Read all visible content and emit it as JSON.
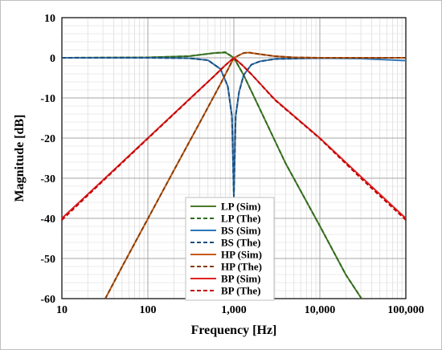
{
  "chart_data": {
    "type": "line",
    "xlabel": "Frequency [Hz]",
    "ylabel": "Magnitude [dB]",
    "xscale": "log",
    "xlim": [
      10,
      100000
    ],
    "ylim": [
      -60,
      10
    ],
    "x_ticks": [
      {
        "value": 10,
        "label": "10"
      },
      {
        "value": 100,
        "label": "100"
      },
      {
        "value": 1000,
        "label": "1,000"
      },
      {
        "value": 10000,
        "label": "10,000"
      },
      {
        "value": 100000,
        "label": "100,000"
      }
    ],
    "y_ticks": [
      {
        "value": 10,
        "label": "10"
      },
      {
        "value": 0,
        "label": "0"
      },
      {
        "value": -10,
        "label": "-10"
      },
      {
        "value": -20,
        "label": "-20"
      },
      {
        "value": -30,
        "label": "-30"
      },
      {
        "value": -40,
        "label": "-40"
      },
      {
        "value": -50,
        "label": "-50"
      },
      {
        "value": -60,
        "label": "-60"
      }
    ],
    "grid": true,
    "legend_position": "bottom-center",
    "series": [
      {
        "name": "LP (Sim)",
        "color": "#4c7a2c",
        "dash": "solid",
        "x": [
          10,
          100,
          300,
          600,
          800,
          1000,
          1300,
          2000,
          4000,
          10000,
          20000,
          33000
        ],
        "y": [
          0,
          0.1,
          0.4,
          1.2,
          1.3,
          0,
          -4.3,
          -12.7,
          -26.3,
          -41.9,
          -54,
          -61.1
        ]
      },
      {
        "name": "LP (The)",
        "color": "#2e6b1f",
        "dash": "dashed",
        "x": [
          10,
          100,
          300,
          600,
          800,
          1000,
          1300,
          2000,
          4000,
          10000,
          20000,
          33000
        ],
        "y": [
          0,
          0.1,
          0.4,
          1.2,
          1.4,
          0,
          -4.3,
          -12.7,
          -26.3,
          -41.9,
          -54,
          -61.1
        ]
      },
      {
        "name": "BS (Sim)",
        "color": "#2e75b6",
        "dash": "solid",
        "x": [
          10,
          100,
          300,
          500,
          700,
          850,
          950,
          1000,
          1050,
          1150,
          1300,
          1600,
          2000,
          3000,
          10000,
          30000,
          100000
        ],
        "y": [
          0,
          0,
          -0.1,
          -0.6,
          -2.8,
          -7.1,
          -14.5,
          -34.5,
          -14.5,
          -8.5,
          -4.3,
          -1.7,
          -0.9,
          -0.3,
          -0.1,
          -0.2,
          -0.7
        ]
      },
      {
        "name": "BS (The)",
        "color": "#1f4e79",
        "dash": "dashed",
        "x": [
          10,
          100,
          300,
          500,
          700,
          850,
          950,
          1000,
          1050,
          1150,
          1300,
          1600,
          2000,
          3000,
          10000,
          100000
        ],
        "y": [
          0,
          0,
          -0.1,
          -0.6,
          -2.8,
          -7.1,
          -14.5,
          -34.5,
          -14.5,
          -8.5,
          -4.3,
          -1.7,
          -0.9,
          -0.3,
          0,
          0
        ]
      },
      {
        "name": "HP (Sim)",
        "color": "#c55a11",
        "dash": "solid",
        "x": [
          32,
          50,
          100,
          200,
          400,
          700,
          1000,
          1300,
          1500,
          2000,
          3000,
          5000,
          10000,
          100000
        ],
        "y": [
          -60,
          -52.1,
          -40.1,
          -28.1,
          -16.2,
          -6.5,
          0,
          1.2,
          1.3,
          0.9,
          0.4,
          0.1,
          0,
          0
        ]
      },
      {
        "name": "HP (The)",
        "color": "#843c0c",
        "dash": "dashed",
        "x": [
          32,
          50,
          100,
          200,
          400,
          700,
          1000,
          1300,
          1500,
          2000,
          3000,
          5000,
          10000,
          100000
        ],
        "y": [
          -60,
          -52.1,
          -40.1,
          -28.1,
          -16.2,
          -6.5,
          0,
          1.2,
          1.3,
          0.9,
          0.4,
          0.1,
          0,
          0
        ]
      },
      {
        "name": "BP (Sim)",
        "color": "#e02020",
        "dash": "solid",
        "x": [
          10,
          30,
          100,
          300,
          600,
          800,
          1000,
          1250,
          1600,
          3000,
          10000,
          30000,
          100000
        ],
        "y": [
          -40,
          -30.5,
          -20,
          -10.4,
          -4.4,
          -1.8,
          0,
          -1.8,
          -4.1,
          -10.4,
          -20,
          -29.6,
          -40
        ]
      },
      {
        "name": "BP (The)",
        "color": "#c00000",
        "dash": "dashed",
        "x": [
          10,
          30,
          100,
          300,
          600,
          800,
          1000,
          1250,
          1600,
          3000,
          10000,
          30000,
          100000
        ],
        "y": [
          -40.4,
          -30.7,
          -20.1,
          -10.5,
          -4.4,
          -1.8,
          0,
          -1.8,
          -4.1,
          -10.5,
          -20.1,
          -30,
          -40.4
        ]
      }
    ]
  }
}
